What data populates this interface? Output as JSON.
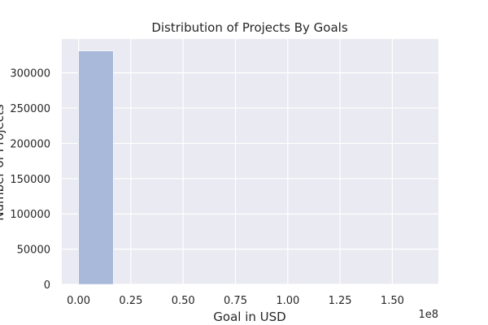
{
  "chart_data": {
    "type": "bar",
    "title": "Distribution of Projects By Goals",
    "xlabel": "Goal in USD",
    "ylabel": "Number of Projects",
    "x_offset_label": "1e8",
    "xlim": [
      -0.08,
      1.72
    ],
    "ylim": [
      0,
      348000
    ],
    "x_ticks": [
      0,
      0.25,
      0.5,
      0.75,
      1.0,
      1.25,
      1.5
    ],
    "x_tick_labels": [
      "0.00",
      "0.25",
      "0.50",
      "0.75",
      "1.00",
      "1.25",
      "1.50"
    ],
    "y_ticks": [
      0,
      50000,
      100000,
      150000,
      200000,
      250000,
      300000
    ],
    "y_tick_labels": [
      "0",
      "50000",
      "100000",
      "150000",
      "200000",
      "250000",
      "300000"
    ],
    "bins": [
      {
        "start": 0.0,
        "end": 0.166,
        "count": 331000
      },
      {
        "start": 0.166,
        "end": 0.332,
        "count": 0
      },
      {
        "start": 0.332,
        "end": 0.498,
        "count": 0
      },
      {
        "start": 0.498,
        "end": 0.664,
        "count": 0
      },
      {
        "start": 0.664,
        "end": 0.83,
        "count": 0
      },
      {
        "start": 0.83,
        "end": 0.996,
        "count": 0
      },
      {
        "start": 0.996,
        "end": 1.162,
        "count": 0
      },
      {
        "start": 1.162,
        "end": 1.328,
        "count": 0
      },
      {
        "start": 1.328,
        "end": 1.494,
        "count": 0
      },
      {
        "start": 1.494,
        "end": 1.66,
        "count": 0
      }
    ],
    "grid": true,
    "colors": {
      "plot_background": "#eaeaf2",
      "grid": "#ffffff",
      "bar_fill": "#a8b9da"
    }
  }
}
